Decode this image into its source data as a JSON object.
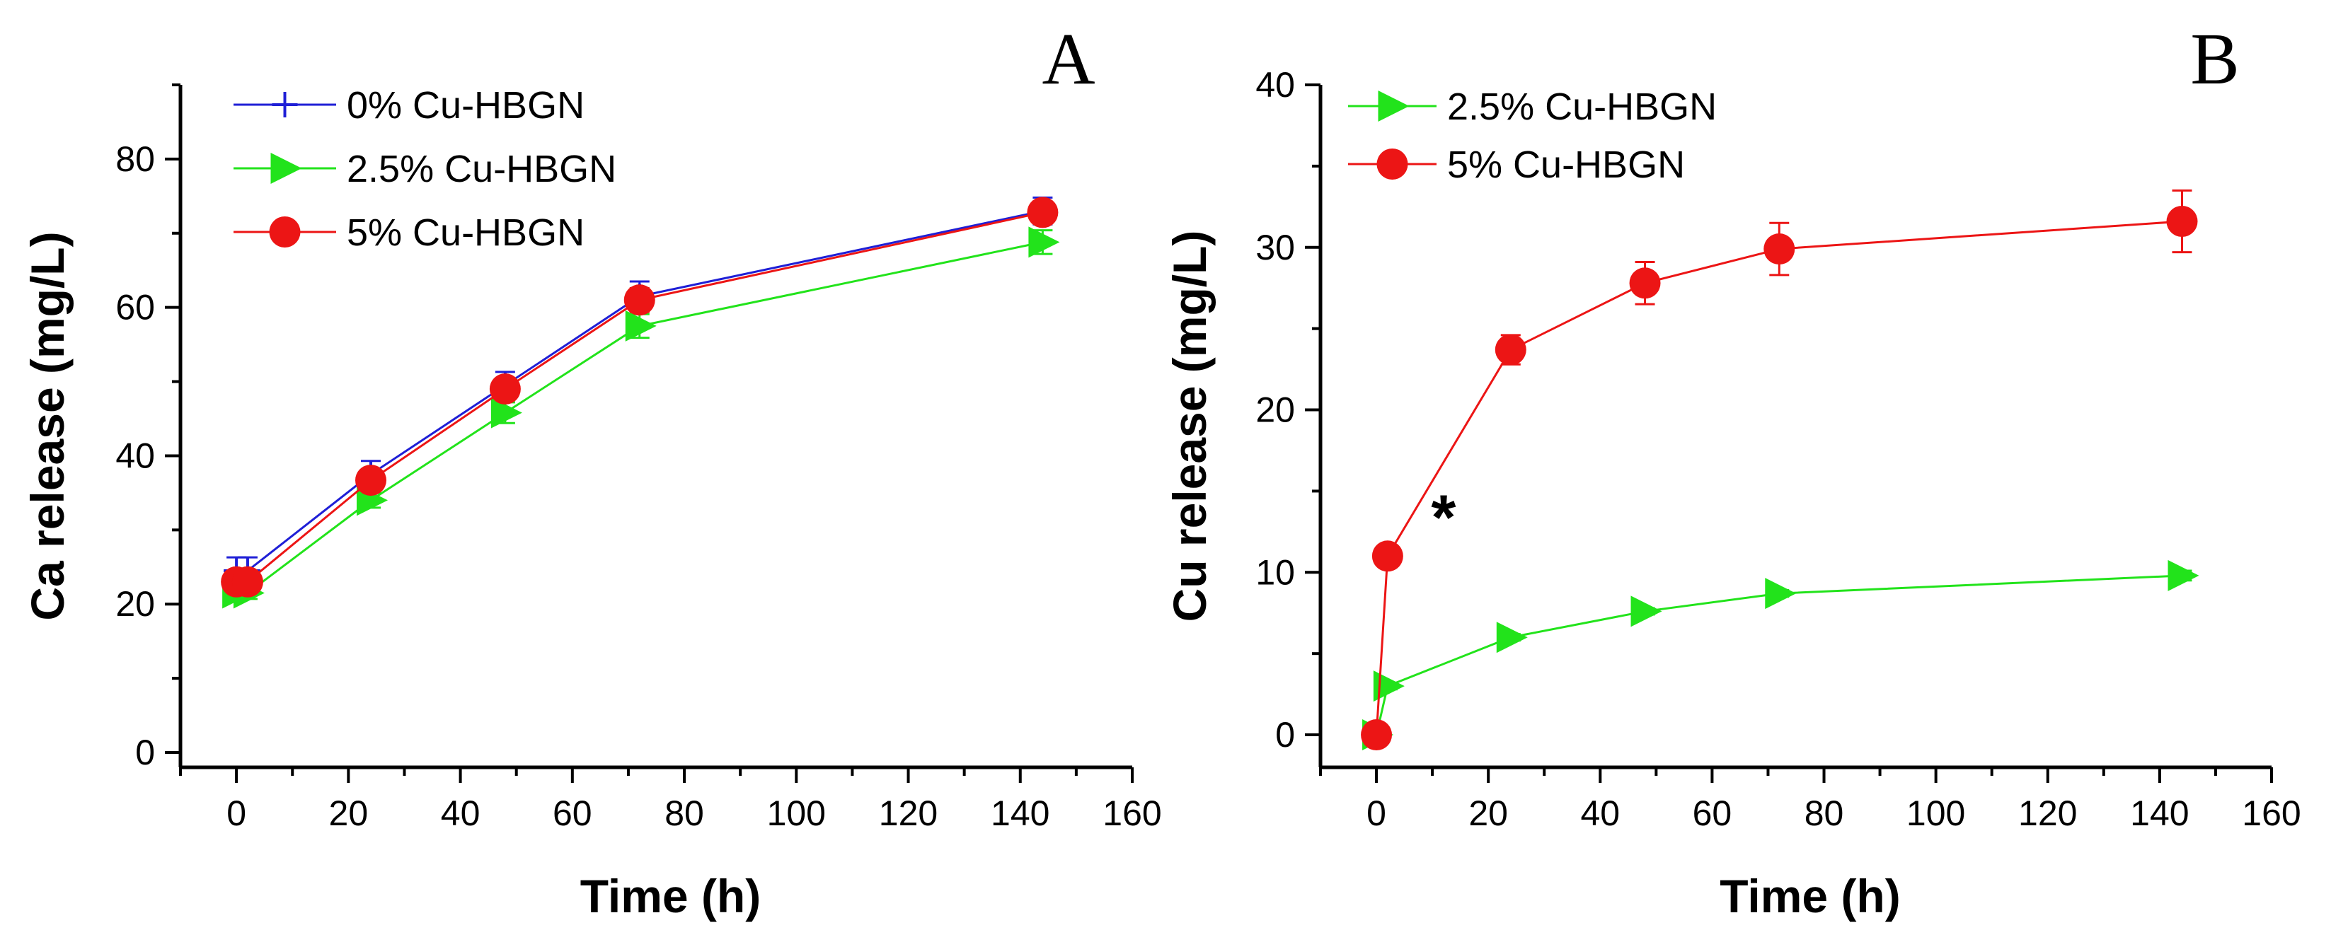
{
  "chart_data": [
    {
      "type": "line",
      "panel_label": "A",
      "xlabel": "Time (h)",
      "ylabel": "Ca release (mg/L)",
      "xlim": [
        -10,
        160
      ],
      "ylim": [
        -2,
        90
      ],
      "xticks": [
        "0",
        "20",
        "40",
        "60",
        "80",
        "100",
        "120",
        "140",
        "160"
      ],
      "yticks": [
        "0",
        "20",
        "40",
        "60",
        "80"
      ],
      "legend_position": "top-left",
      "series": [
        {
          "name": "0% Cu-HBGN",
          "color": "#1f1fd6",
          "marker": "plus",
          "x": [
            0,
            2,
            24,
            48,
            72,
            144
          ],
          "y": [
            24.5,
            24.5,
            37.5,
            49.5,
            61.5,
            73
          ],
          "err": [
            1.8,
            1.8,
            1.8,
            1.8,
            2.0,
            1.8
          ]
        },
        {
          "name": "2.5% Cu-HBGN",
          "color": "#22e31b",
          "marker": "triangle-right",
          "x": [
            0,
            2,
            24,
            48,
            72,
            144
          ],
          "y": [
            21.5,
            21.5,
            34,
            45.8,
            57.5,
            68.8
          ],
          "err": [
            0.8,
            0.8,
            1.0,
            1.4,
            1.6,
            1.6
          ]
        },
        {
          "name": "5% Cu-HBGN",
          "color": "#ec1515",
          "marker": "circle",
          "x": [
            0,
            2,
            24,
            48,
            72,
            144
          ],
          "y": [
            23,
            23,
            36.7,
            49,
            61,
            72.8
          ],
          "err": [
            1.0,
            1.0,
            1.2,
            1.4,
            1.6,
            1.5
          ]
        }
      ]
    },
    {
      "type": "line",
      "panel_label": "B",
      "xlabel": "Time (h)",
      "ylabel": "Cu release (mg/L)",
      "xlim": [
        -10,
        160
      ],
      "ylim": [
        -2,
        40
      ],
      "xticks": [
        "0",
        "20",
        "40",
        "60",
        "80",
        "100",
        "120",
        "140",
        "160"
      ],
      "yticks": [
        "0",
        "10",
        "20",
        "30",
        "40"
      ],
      "legend_position": "top-left",
      "annotation": "*",
      "series": [
        {
          "name": "2.5% Cu-HBGN",
          "color": "#22e31b",
          "marker": "triangle-right",
          "x": [
            0,
            2,
            24,
            48,
            72,
            144
          ],
          "y": [
            0,
            3,
            6,
            7.6,
            8.7,
            9.8
          ],
          "err": [
            0,
            0.2,
            0.2,
            0.2,
            0.2,
            0.3
          ]
        },
        {
          "name": "5% Cu-HBGN",
          "color": "#ec1515",
          "marker": "circle",
          "x": [
            0,
            2,
            24,
            48,
            72,
            144
          ],
          "y": [
            0,
            11,
            23.7,
            27.8,
            29.9,
            31.6
          ],
          "err": [
            0,
            0.3,
            0.9,
            1.3,
            1.6,
            1.9
          ]
        }
      ]
    }
  ]
}
